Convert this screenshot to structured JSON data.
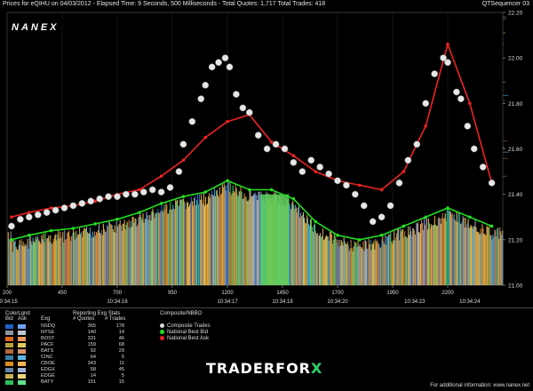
{
  "header": {
    "left": "Prices for  eQIHU  on  04/03/2012  -  Elapsed Time: 9 Seconds, 500 Milliseconds  -  Total Quotes: 1,717  Total Trades: 418",
    "right": "QTSequencer 03"
  },
  "brand": "NANEX",
  "chart_data": {
    "type": "line",
    "ylim": [
      21.0,
      22.2
    ],
    "y_ticks": [
      "21.00",
      "21.20",
      "21.40",
      "21.60",
      "21.80",
      "22.00",
      "22.20"
    ],
    "x_index_ticks": [
      {
        "x": 200,
        "label": "200"
      },
      {
        "x": 450,
        "label": "450"
      },
      {
        "x": 700,
        "label": "700"
      },
      {
        "x": 950,
        "label": "950"
      },
      {
        "x": 1200,
        "label": "1200"
      },
      {
        "x": 1450,
        "label": "1450"
      },
      {
        "x": 1700,
        "label": "1700"
      },
      {
        "x": 1950,
        "label": "1950"
      },
      {
        "x": 2200,
        "label": "2200"
      }
    ],
    "xlim": [
      200,
      2450
    ],
    "x_time_ticks": [
      {
        "x": 200,
        "label": "10:34:15"
      },
      {
        "x": 700,
        "label": "10:34:16"
      },
      {
        "x": 1200,
        "label": "10:34:17"
      },
      {
        "x": 1450,
        "label": "10:34:18"
      },
      {
        "x": 1700,
        "label": "10:34:20"
      },
      {
        "x": 2050,
        "label": "10:34:23"
      },
      {
        "x": 2300,
        "label": "10:34:24"
      }
    ],
    "series": [
      {
        "name": "Composite Trades",
        "color": "#d9d9d9",
        "points": [
          [
            220,
            21.26
          ],
          [
            260,
            21.29
          ],
          [
            300,
            21.3
          ],
          [
            340,
            21.31
          ],
          [
            380,
            21.32
          ],
          [
            420,
            21.33
          ],
          [
            460,
            21.34
          ],
          [
            500,
            21.35
          ],
          [
            540,
            21.36
          ],
          [
            580,
            21.37
          ],
          [
            620,
            21.38
          ],
          [
            660,
            21.39
          ],
          [
            700,
            21.39
          ],
          [
            740,
            21.4
          ],
          [
            780,
            21.4
          ],
          [
            820,
            21.41
          ],
          [
            860,
            21.42
          ],
          [
            900,
            21.41
          ],
          [
            940,
            21.43
          ],
          [
            980,
            21.5
          ],
          [
            1000,
            21.62
          ],
          [
            1040,
            21.72
          ],
          [
            1080,
            21.82
          ],
          [
            1100,
            21.88
          ],
          [
            1130,
            21.96
          ],
          [
            1160,
            21.98
          ],
          [
            1190,
            22.0
          ],
          [
            1210,
            21.96
          ],
          [
            1240,
            21.84
          ],
          [
            1270,
            21.78
          ],
          [
            1300,
            21.76
          ],
          [
            1340,
            21.66
          ],
          [
            1380,
            21.6
          ],
          [
            1420,
            21.62
          ],
          [
            1460,
            21.6
          ],
          [
            1500,
            21.54
          ],
          [
            1540,
            21.5
          ],
          [
            1580,
            21.55
          ],
          [
            1620,
            21.52
          ],
          [
            1660,
            21.49
          ],
          [
            1700,
            21.46
          ],
          [
            1740,
            21.44
          ],
          [
            1780,
            21.4
          ],
          [
            1820,
            21.35
          ],
          [
            1860,
            21.28
          ],
          [
            1900,
            21.3
          ],
          [
            1940,
            21.35
          ],
          [
            1980,
            21.45
          ],
          [
            2020,
            21.55
          ],
          [
            2060,
            21.62
          ],
          [
            2100,
            21.8
          ],
          [
            2140,
            21.93
          ],
          [
            2180,
            22.0
          ],
          [
            2200,
            21.98
          ],
          [
            2240,
            21.85
          ],
          [
            2260,
            21.82
          ],
          [
            2290,
            21.7
          ],
          [
            2320,
            21.6
          ],
          [
            2360,
            21.52
          ],
          [
            2400,
            21.45
          ]
        ]
      },
      {
        "name": "National Best Bid",
        "color": "#22dd22",
        "points": [
          [
            220,
            21.2
          ],
          [
            300,
            21.22
          ],
          [
            400,
            21.24
          ],
          [
            500,
            21.25
          ],
          [
            600,
            21.27
          ],
          [
            700,
            21.29
          ],
          [
            800,
            21.32
          ],
          [
            900,
            21.36
          ],
          [
            1000,
            21.39
          ],
          [
            1100,
            21.41
          ],
          [
            1200,
            21.46
          ],
          [
            1300,
            21.42
          ],
          [
            1400,
            21.42
          ],
          [
            1500,
            21.38
          ],
          [
            1600,
            21.28
          ],
          [
            1700,
            21.22
          ],
          [
            1800,
            21.2
          ],
          [
            1900,
            21.22
          ],
          [
            2000,
            21.26
          ],
          [
            2100,
            21.3
          ],
          [
            2200,
            21.34
          ],
          [
            2300,
            21.3
          ],
          [
            2400,
            21.26
          ]
        ]
      },
      {
        "name": "National Best Ask",
        "color": "#ee2222",
        "points": [
          [
            220,
            21.3
          ],
          [
            300,
            21.32
          ],
          [
            400,
            21.34
          ],
          [
            500,
            21.35
          ],
          [
            600,
            21.37
          ],
          [
            700,
            21.4
          ],
          [
            800,
            21.42
          ],
          [
            900,
            21.48
          ],
          [
            1000,
            21.55
          ],
          [
            1100,
            21.65
          ],
          [
            1200,
            21.72
          ],
          [
            1300,
            21.75
          ],
          [
            1400,
            21.63
          ],
          [
            1500,
            21.57
          ],
          [
            1600,
            21.5
          ],
          [
            1700,
            21.46
          ],
          [
            1800,
            21.44
          ],
          [
            1900,
            21.42
          ],
          [
            2000,
            21.5
          ],
          [
            2100,
            21.7
          ],
          [
            2200,
            22.06
          ],
          [
            2300,
            21.8
          ],
          [
            2400,
            21.45
          ]
        ]
      }
    ],
    "exchange_colors": [
      "#2b6fd6",
      "#9aa7b4",
      "#e07a2a",
      "#d6b84a",
      "#c97f50",
      "#3bb0d8",
      "#f0a030",
      "#8aa4c8",
      "#e8d070",
      "#3fd26a",
      "#f2c040"
    ]
  },
  "stats": {
    "colorlgnd_label": "ColorLgnd",
    "bid_label": "Bid",
    "ask_label": "Ask",
    "exg_header": "Exg",
    "reporting_header": "Reporting Exg Stats",
    "quotes_header": "# Quotes",
    "trades_header": "# Trades",
    "rows": [
      {
        "exg": "NSDQ",
        "quotes": "365",
        "trades": "178",
        "bid": "#1e5fc8",
        "ask": "#6fa0ff"
      },
      {
        "exg": "NYSE",
        "quotes": "140",
        "trades": "14",
        "bid": "#8b96a3",
        "ask": "#c0c8d2"
      },
      {
        "exg": "BOST",
        "quotes": "331",
        "trades": "46",
        "bid": "#d9661e",
        "ask": "#f09a5a"
      },
      {
        "exg": "PACF",
        "quotes": "159",
        "trades": "68",
        "bid": "#b5a03a",
        "ask": "#e0cc62"
      },
      {
        "exg": "BATS",
        "quotes": "92",
        "trades": "29",
        "bid": "#b4683c",
        "ask": "#dc9468"
      },
      {
        "exg": "CINC",
        "quotes": "64",
        "trades": "5",
        "bid": "#3a7ea6",
        "ask": "#5cb8e2"
      },
      {
        "exg": "CBOE",
        "quotes": "343",
        "trades": "11",
        "bid": "#e08a20",
        "ask": "#f6b454"
      },
      {
        "exg": "EDGX",
        "quotes": "58",
        "trades": "45",
        "bid": "#6883aa",
        "ask": "#9eb6d8"
      },
      {
        "exg": "EDGE",
        "quotes": "14",
        "trades": "5",
        "bid": "#c8b050",
        "ask": "#f0d67a"
      },
      {
        "exg": "BATY",
        "quotes": "151",
        "trades": "15",
        "bid": "#2cbf58",
        "ask": "#5fe08a"
      }
    ]
  },
  "composite": {
    "header": "Composite/NBBO",
    "items": [
      {
        "label": "Composite Trades",
        "color": "#d9d9d9"
      },
      {
        "label": "National Best Bid",
        "color": "#22dd22"
      },
      {
        "label": "National Best Ask",
        "color": "#ee2222"
      }
    ]
  },
  "footnote": "For additional information: www.nanex.net",
  "watermark": {
    "a": "TRADERFOR",
    "x": "X"
  }
}
